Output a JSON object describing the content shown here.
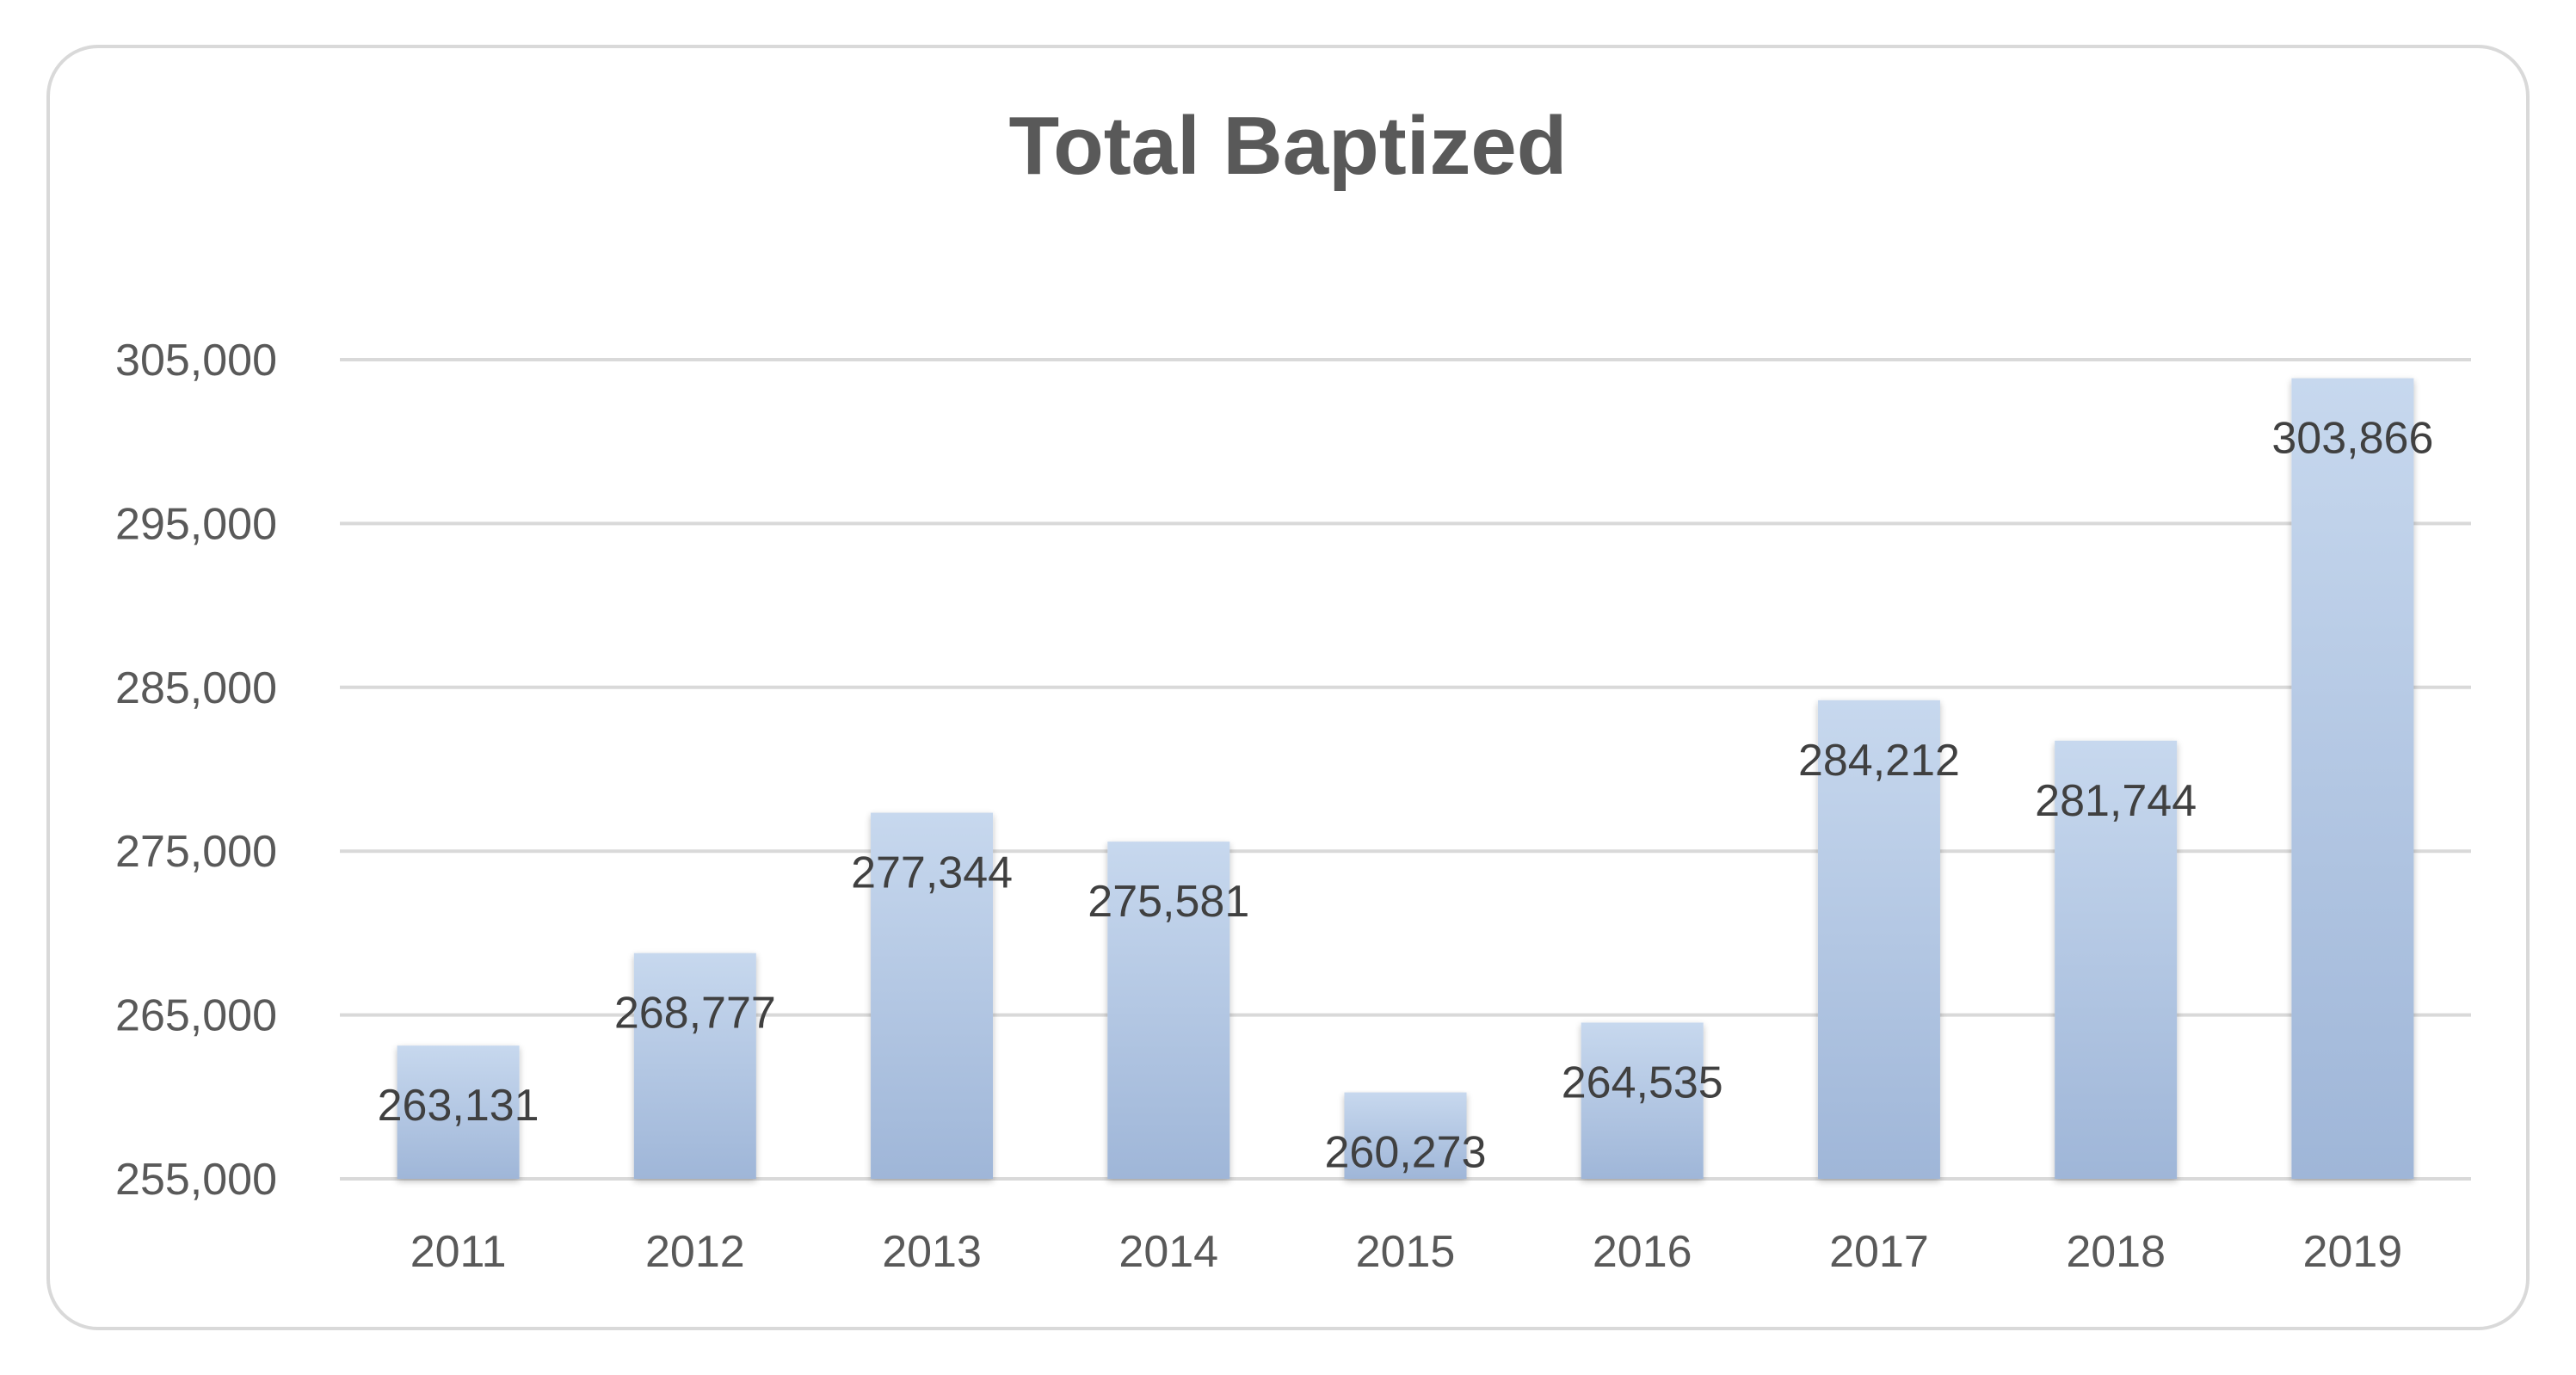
{
  "chart_data": {
    "type": "bar",
    "title": "Total Baptized",
    "xlabel": "",
    "ylabel": "",
    "categories": [
      "2011",
      "2012",
      "2013",
      "2014",
      "2015",
      "2016",
      "2017",
      "2018",
      "2019"
    ],
    "values": [
      263131,
      268777,
      277344,
      275581,
      260273,
      264535,
      284212,
      281744,
      303866
    ],
    "data_labels": [
      "263,131",
      "268,777",
      "277,344",
      "275,581",
      "260,273",
      "264,535",
      "284,212",
      "281,744",
      "303,866"
    ],
    "ylim": [
      255000,
      305000
    ],
    "yticks": [
      255000,
      265000,
      275000,
      285000,
      295000,
      305000
    ],
    "ytick_labels": [
      "255,000",
      "265,000",
      "275,000",
      "285,000",
      "295,000",
      "305,000"
    ],
    "grid": true,
    "legend": "none",
    "colors": {
      "bar_top": "#c7d8ee",
      "bar_bottom": "#9fb6d8",
      "grid": "#d9d9d9",
      "text": "#595959"
    }
  }
}
